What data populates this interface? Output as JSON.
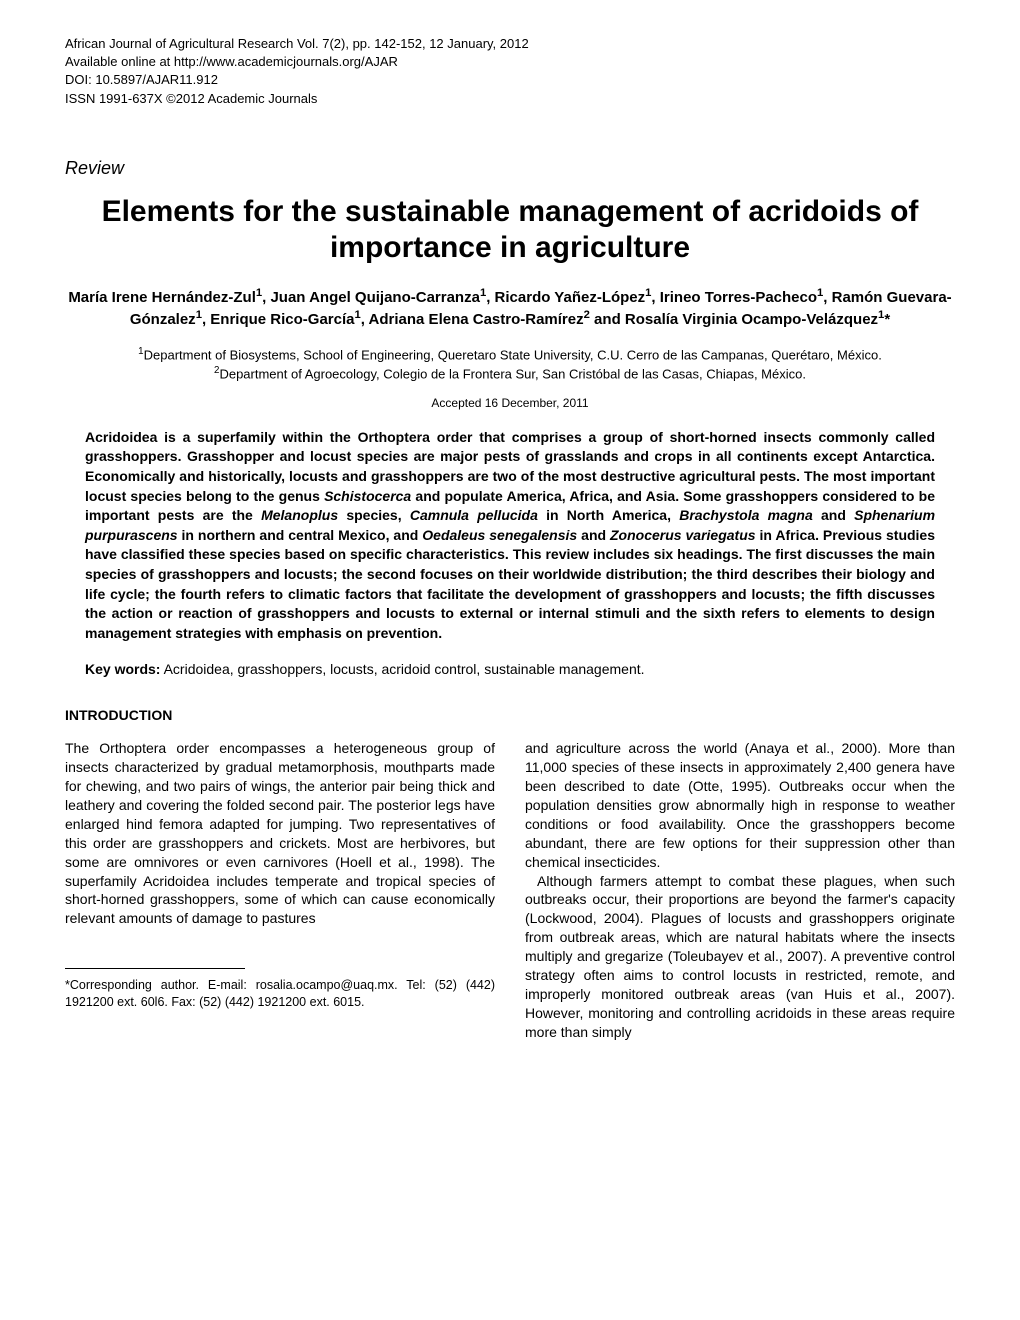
{
  "header": {
    "line1": "African Journal of Agricultural Research Vol. 7(2), pp. 142-152, 12 January, 2012",
    "line2": "Available online at http://www.academicjournals.org/AJAR",
    "line3": "DOI: 10.5897/AJAR11.912",
    "line4": "ISSN 1991-637X ©2012 Academic Journals"
  },
  "article_type": "Review",
  "title": "Elements for the sustainable management of acridoids of importance in agriculture",
  "authors_html": "María Irene Hernández-Zul<sup>1</sup>, Juan Angel Quijano-Carranza<sup>1</sup>, Ricardo Yañez-López<sup>1</sup>, Irineo Torres-Pacheco<sup>1</sup>, Ramón Guevara-Gónzalez<sup>1</sup>, Enrique Rico-García<sup>1</sup>,  Adriana Elena Castro-Ramírez<sup>2</sup> and Rosalía Virginia Ocampo-Velázquez<sup>1</sup>*",
  "affiliations": {
    "aff1": "Department of Biosystems, School of Engineering, Queretaro State University, C.U. Cerro de las Campanas, Querétaro, México.",
    "aff2": "Department of Agroecology, Colegio de la Frontera Sur, San Cristóbal de las Casas, Chiapas, México."
  },
  "accepted": "Accepted 16 December, 2011",
  "abstract": {
    "p1a": "Acridoidea is a superfamily within the Orthoptera order that comprises a group of short-horned insects commonly called grasshoppers. Grasshopper and locust species are major pests of grasslands and crops in all continents except Antarctica. Economically and historically, locusts and grasshoppers are two of the most destructive agricultural pests. The most important locust species belong to the genus ",
    "i1": "Schistocerca",
    "p1b": " and populate America, Africa, and Asia. Some grasshoppers considered to be important pests are the ",
    "i2": "Melanoplus",
    "p1c": " species, ",
    "i3": "Camnula pellucida",
    "p1d": " in North America, ",
    "i4": "Brachystola magna",
    "p1e": " and ",
    "i5": "Sphenarium purpurascens",
    "p1f": " in northern and central Mexico, and ",
    "i6": "Oedaleus senegalensis",
    "p1g": " and ",
    "i7": "Zonocerus variegatus",
    "p1h": " in Africa. Previous studies have classified these species based on specific characteristics. This review includes six headings. The first discusses the main species of grasshoppers and locusts; the second focuses on their worldwide distribution; the third describes their biology and life cycle; the fourth refers to climatic factors that facilitate the development of grasshoppers and locusts; the fifth discusses the action or reaction of grasshoppers and locusts to external or internal stimuli and the sixth refers to elements to design management strategies with emphasis on prevention."
  },
  "keywords_label": "Key words:",
  "keywords_text": " Acridoidea, grasshoppers, locusts, acridoid control, sustainable management.",
  "section_heading": "INTRODUCTION",
  "body": {
    "col1_p1": "The Orthoptera order encompasses a heterogeneous group of insects characterized by gradual metamorphosis, mouthparts made for chewing, and two pairs of wings, the anterior pair being thick and leathery and covering the folded second pair. The posterior legs have enlarged hind femora adapted for jumping. Two representatives of this order are grasshoppers and crickets. Most are herbivores, but some are omnivores or even carnivores (Hoell et al., 1998). The superfamily Acridoidea includes temperate and tropical species of short-horned grasshoppers, some of which can cause economically relevant amounts of damage to pastures",
    "col2_p1": "and agriculture across the world (Anaya et al., 2000). More than 11,000 species of these insects in approximately 2,400 genera have been described to date (Otte, 1995). Outbreaks occur when the population densities grow abnormally high in response to weather conditions or food availability. Once the grasshoppers become abundant, there are few options for their suppression other than chemical insecticides.",
    "col2_p2": "Although farmers attempt to combat these plagues, when such outbreaks occur, their proportions are beyond the farmer's capacity (Lockwood, 2004). Plagues of locusts and grasshoppers originate from outbreak areas, which are natural habitats where the insects multiply and gregarize (Toleubayev et al., 2007). A preventive control strategy often aims to control locusts in restricted, remote, and improperly monitored outbreak areas (van Huis et al., 2007). However, monitoring and controlling acridoids in these areas require more than simply"
  },
  "footnote": "*Corresponding author. E-mail: rosalia.ocampo@uaq.mx. Tel: (52) (442) 1921200 ext. 60l6. Fax: (52) (442) 1921200 ext. 6015."
}
